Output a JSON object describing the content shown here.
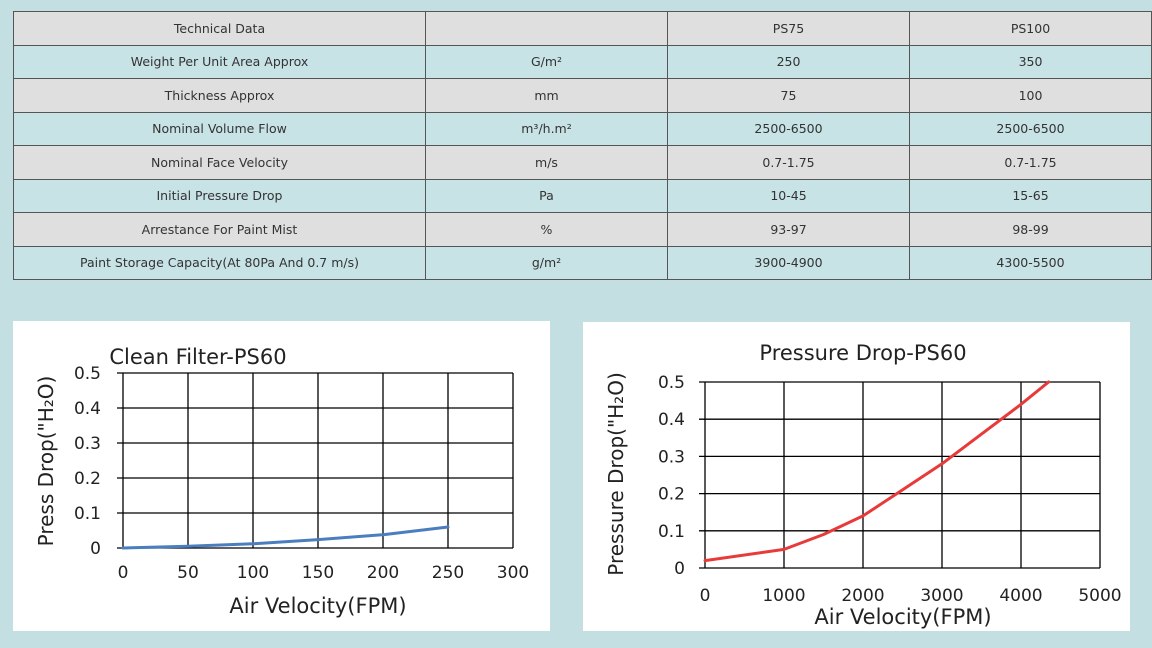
{
  "table": {
    "headers": [
      "Technical Data",
      "",
      "PS75",
      "PS100"
    ],
    "rows": [
      [
        "Weight Per Unit Area Approx",
        "G/m²",
        "250",
        "350"
      ],
      [
        "Thickness Approx",
        "mm",
        "75",
        "100"
      ],
      [
        "Nominal Volume Flow",
        "m³/h.m²",
        "2500-6500",
        "2500-6500"
      ],
      [
        "Nominal Face Velocity",
        "m/s",
        "0.7-1.75",
        "0.7-1.75"
      ],
      [
        "Initial Pressure Drop",
        "Pa",
        "10-45",
        "15-65"
      ],
      [
        "Arrestance For Paint Mist",
        "%",
        "93-97",
        "98-99"
      ],
      [
        "Paint Storage Capacity(At 80Pa And 0.7 m/s)",
        "g/m²",
        "3900-4900",
        "4300-5500"
      ]
    ]
  },
  "chart_data": [
    {
      "type": "line",
      "title": "Clean Filter-PS60",
      "xlabel": "Air Velocity(FPM)",
      "ylabel": "Press Drop(\"H₂O)",
      "xlim": [
        0,
        300
      ],
      "ylim": [
        0,
        0.5
      ],
      "xticks": [
        "0",
        "50",
        "100",
        "150",
        "200",
        "250",
        "300"
      ],
      "yticks": [
        "0",
        "0.1",
        "0.2",
        "0.3",
        "0.4",
        "0.5"
      ],
      "grid": true,
      "series": [
        {
          "name": "PS60",
          "color": "#4a7ebf",
          "x": [
            0,
            50,
            100,
            150,
            200,
            250
          ],
          "y": [
            0,
            0.005,
            0.012,
            0.024,
            0.038,
            0.06
          ]
        }
      ]
    },
    {
      "type": "line",
      "title": "Pressure Drop-PS60",
      "xlabel": "Air Velocity(FPM)",
      "ylabel": "Pressure Drop(\"H₂O)",
      "xlim": [
        0,
        5000
      ],
      "ylim": [
        0,
        0.5
      ],
      "xticks": [
        "0",
        "1000",
        "2000",
        "3000",
        "4000",
        "5000"
      ],
      "yticks": [
        "0",
        "0.1",
        "0.2",
        "0.3",
        "0.4",
        "0.5"
      ],
      "grid": true,
      "series": [
        {
          "name": "PS60",
          "color": "#e83a3a",
          "x": [
            0,
            1000,
            1500,
            2000,
            2500,
            3000,
            3500,
            4000,
            4350
          ],
          "y": [
            0.02,
            0.05,
            0.09,
            0.14,
            0.21,
            0.28,
            0.36,
            0.44,
            0.5
          ]
        }
      ]
    }
  ]
}
